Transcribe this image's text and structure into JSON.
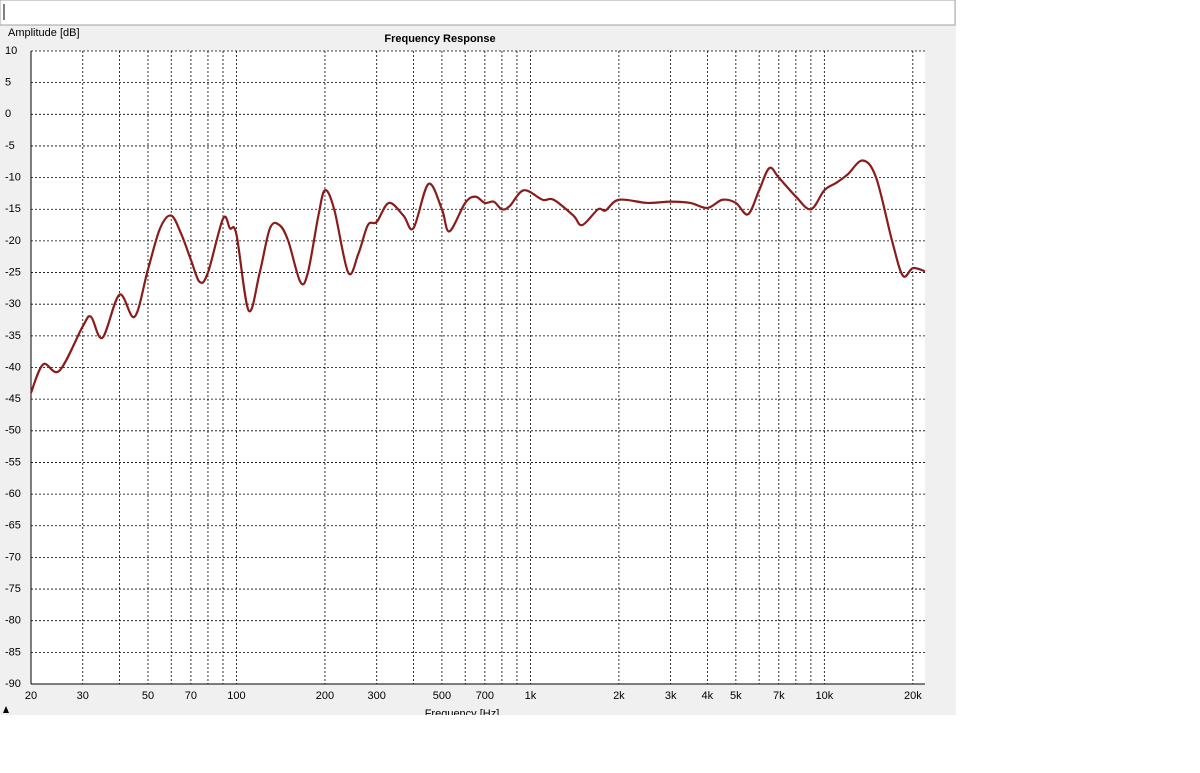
{
  "chart_data": {
    "type": "line",
    "title": "Frequency Response",
    "x_label": "Frequency [Hz]",
    "y_label": "Amplitude [dB]",
    "x_scale": "log",
    "grid": true,
    "xlim": [
      20,
      22000
    ],
    "ylim": [
      -90,
      10
    ],
    "yticks": [
      10,
      5,
      0,
      -5,
      -10,
      -15,
      -20,
      -25,
      -30,
      -35,
      -40,
      -45,
      -50,
      -55,
      -60,
      -65,
      -70,
      -75,
      -80,
      -85,
      -90
    ],
    "xticks": [
      20,
      30,
      50,
      70,
      100,
      200,
      300,
      500,
      700,
      {
        "value": 1000,
        "label": "1k"
      },
      {
        "value": 2000,
        "label": "2k"
      },
      {
        "value": 3000,
        "label": "3k"
      },
      {
        "value": 4000,
        "label": "4k"
      },
      {
        "value": 5000,
        "label": "5k"
      },
      {
        "value": 7000,
        "label": "7k"
      },
      {
        "value": 10000,
        "label": "10k"
      },
      {
        "value": 20000,
        "label": "20k"
      }
    ],
    "xminorticks": [
      40,
      60,
      80,
      90,
      400,
      600,
      800,
      900,
      6000,
      8000,
      9000
    ],
    "x": [
      20,
      22,
      25,
      30,
      32,
      35,
      40,
      45,
      50,
      55,
      60,
      65,
      70,
      75,
      80,
      90,
      95,
      100,
      110,
      120,
      130,
      140,
      150,
      165,
      175,
      190,
      200,
      215,
      240,
      260,
      280,
      300,
      330,
      370,
      400,
      450,
      500,
      530,
      600,
      650,
      700,
      750,
      800,
      850,
      950,
      1100,
      1200,
      1400,
      1500,
      1700,
      1800,
      2000,
      2500,
      3000,
      3500,
      4000,
      4500,
      5000,
      5500,
      6000,
      6500,
      7000,
      8000,
      9000,
      10000,
      11000,
      12000,
      13500,
      15000,
      17000,
      18500,
      20000,
      22000
    ],
    "series": [
      {
        "color": "#8b1c1c",
        "values": [
          -44,
          -39.5,
          -40.5,
          -33.5,
          -32,
          -35.3,
          -28.5,
          -32,
          -24.5,
          -18,
          -16,
          -19,
          -23,
          -26.5,
          -25,
          -16.5,
          -18,
          -19,
          -31,
          -25,
          -18,
          -17.5,
          -20,
          -26.5,
          -25,
          -16,
          -12,
          -15,
          -25,
          -22,
          -17.5,
          -17,
          -14,
          -16,
          -18,
          -11,
          -15,
          -18.5,
          -14,
          -13,
          -14,
          -13.8,
          -15,
          -14.5,
          -12,
          -13.5,
          -13.5,
          -16,
          -17.5,
          -15,
          -15.2,
          -13.5,
          -14,
          -13.8,
          -14,
          -14.8,
          -13.5,
          -14,
          -15.8,
          -12,
          -8.5,
          -10,
          -13,
          -15,
          -12,
          -10.8,
          -9.5,
          -7.3,
          -10,
          -20,
          -25.5,
          -24.3,
          -24.8
        ]
      }
    ]
  }
}
